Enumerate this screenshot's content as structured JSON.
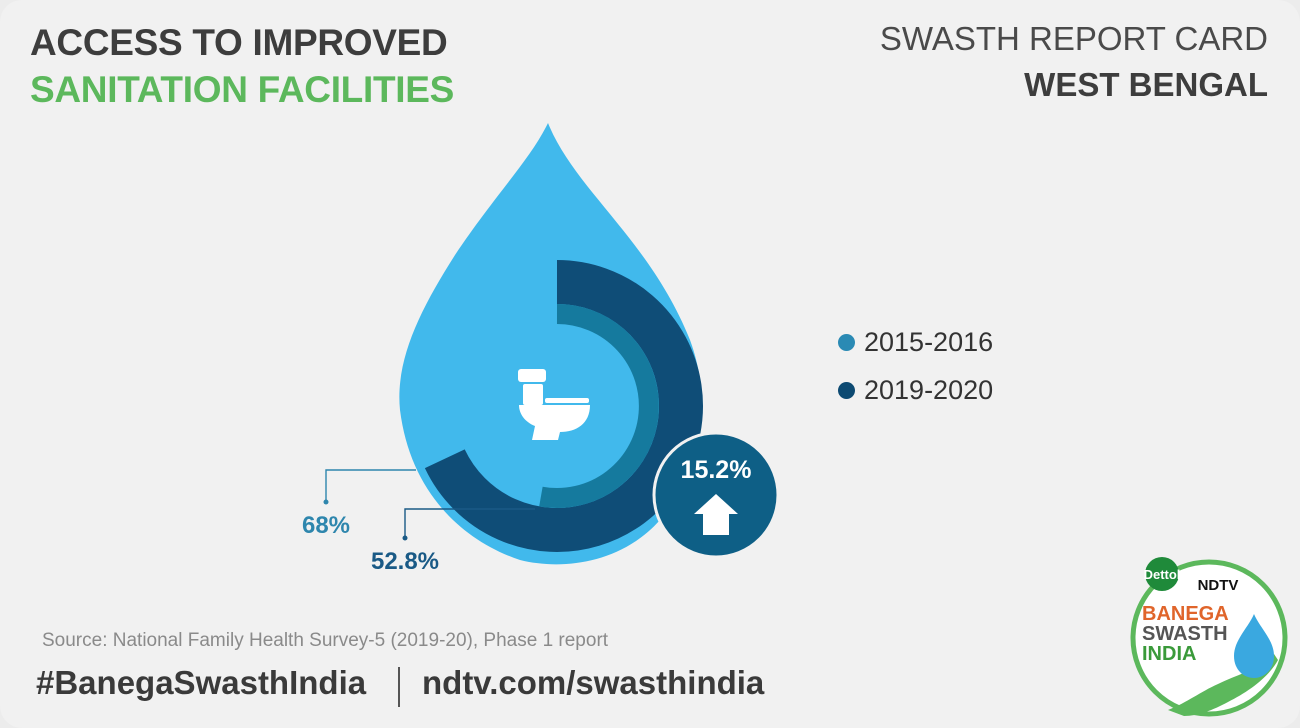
{
  "header": {
    "title_line1": "ACCESS TO IMPROVED",
    "title_line2": "SANITATION FACILITIES",
    "report_card": "SWASTH REPORT CARD",
    "state": "WEST BENGAL"
  },
  "chart_data": {
    "type": "radial-bar",
    "series": [
      {
        "name": "2015-2016",
        "value": 52.8,
        "label": "52.8%",
        "color": "#157a9e"
      },
      {
        "name": "2019-2020",
        "value": 68,
        "label": "68%",
        "color": "#0f4d77"
      }
    ],
    "max": 100,
    "change": {
      "label": "15.2%",
      "direction": "up"
    },
    "drop_color": "#41b9ec",
    "center_icon": "toilet-icon"
  },
  "legend": [
    {
      "label": "2015-2016",
      "color": "#2a8ab4"
    },
    {
      "label": "2019-2020",
      "color": "#0d4a72"
    }
  ],
  "footer": {
    "source": "Source: National Family Health Survey-5 (2019-20), Phase 1 report",
    "hashtag": "#BanegaSwasthIndia",
    "url": "ndtv.com/swasthindia"
  },
  "logo": {
    "dettol": "Dettol",
    "ndtv": "NDTV",
    "line1": "BANEGA",
    "line2": "SWASTH",
    "line3": "INDIA",
    "icons": [
      "water-drop-icon",
      "hand-icon"
    ]
  }
}
